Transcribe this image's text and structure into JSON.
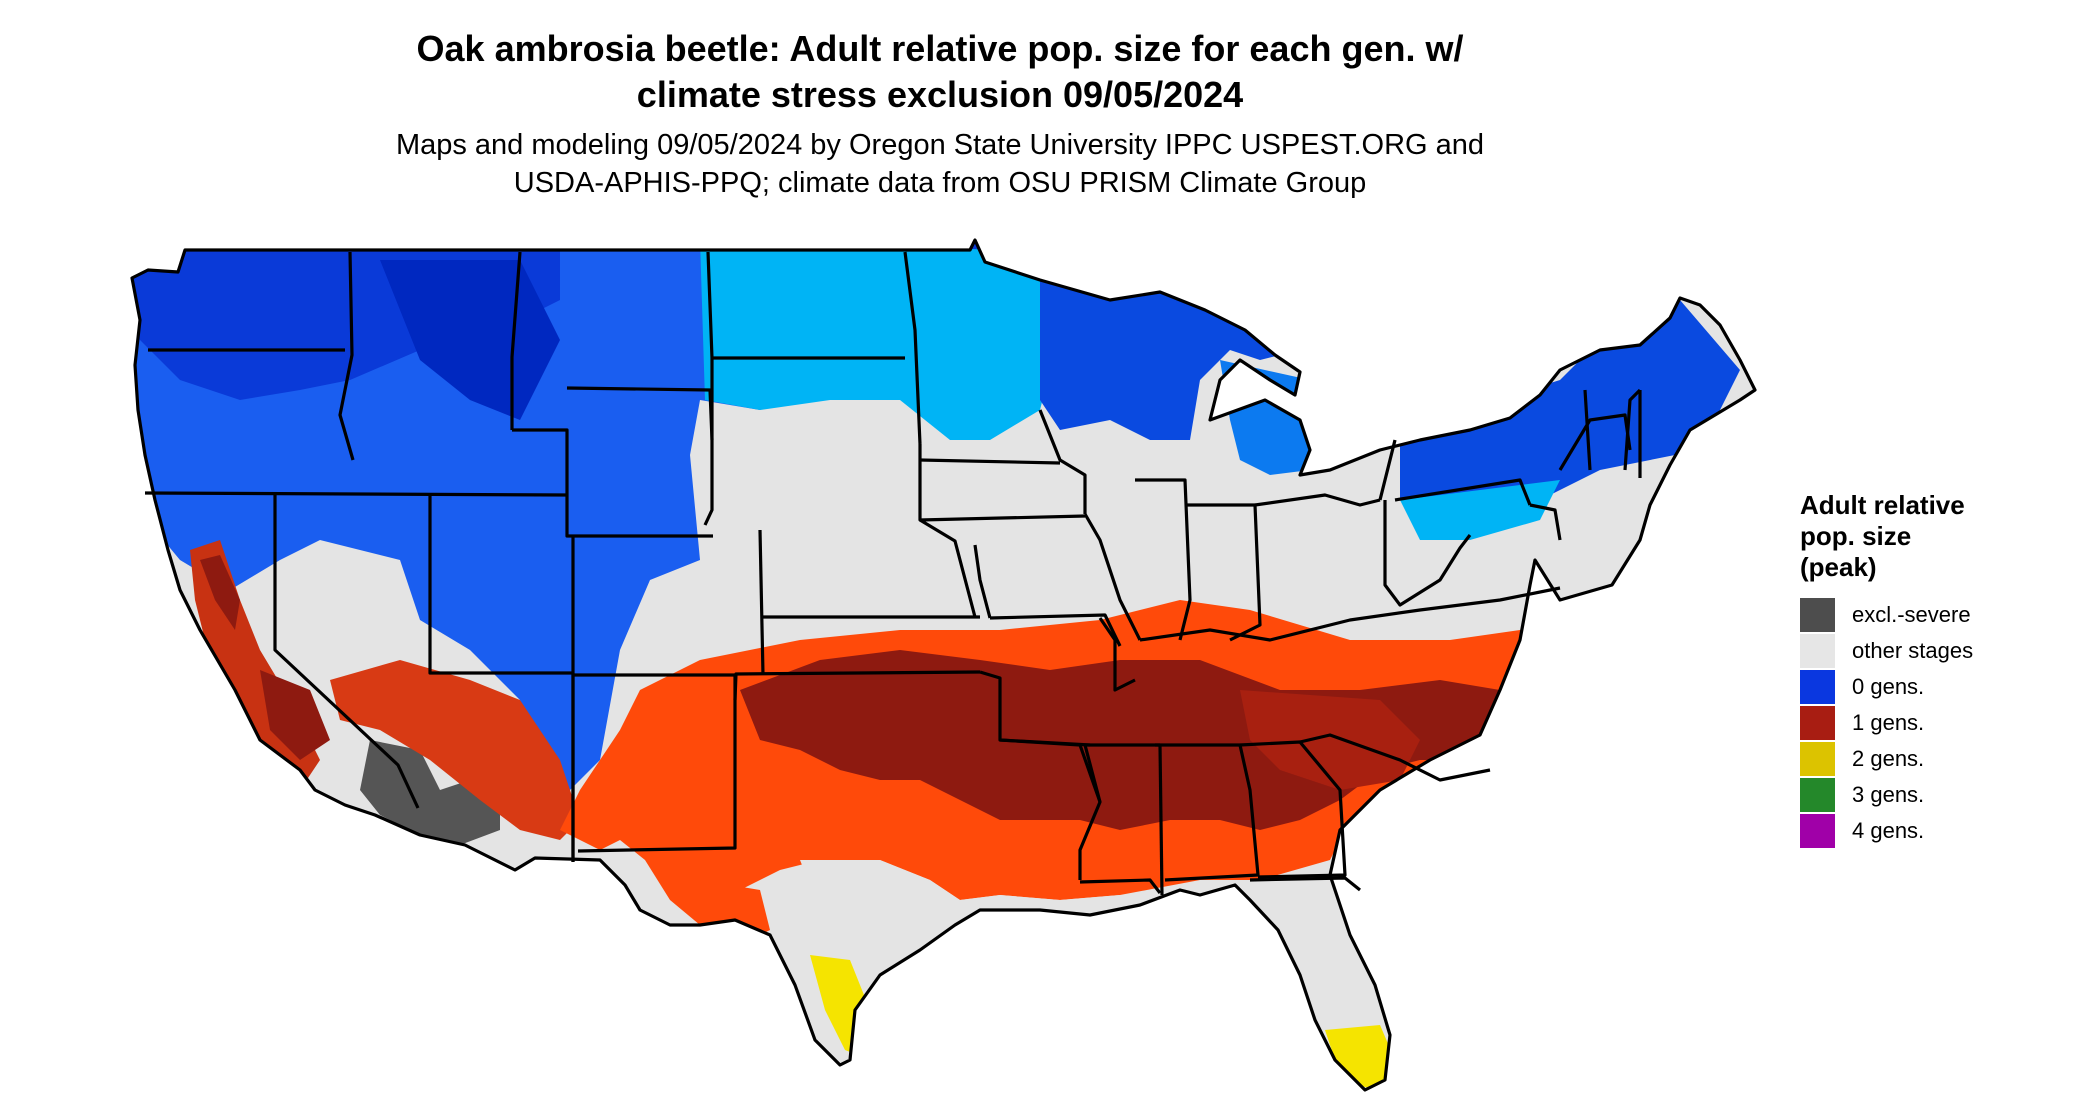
{
  "title_line1": "Oak ambrosia beetle: Adult relative pop. size for each gen. w/",
  "title_line2": "climate stress exclusion 09/05/2024",
  "subtitle_line1": "Maps and modeling 09/05/2024 by Oregon State University IPPC USPEST.ORG and",
  "subtitle_line2": "USDA-APHIS-PPQ; climate data from OSU PRISM Climate Group",
  "legend": {
    "title_line1": "Adult relative",
    "title_line2": "pop. size",
    "title_line3": "(peak)",
    "items": [
      {
        "label": "excl.-severe",
        "color": "#4d4d4d"
      },
      {
        "label": "other stages",
        "color": "#e6e6e6"
      },
      {
        "label": "0 gens.",
        "color": "#0a37e0"
      },
      {
        "label": "1 gens.",
        "color": "#a81d12"
      },
      {
        "label": "2 gens.",
        "color": "#dcc300"
      },
      {
        "label": "3 gens.",
        "color": "#24882a"
      },
      {
        "label": "4 gens.",
        "color": "#a000a8"
      }
    ]
  },
  "map_colors": {
    "background_land": "#e4e4e4",
    "cold_dark": "#0028c8",
    "cold_mid": "#1a6ef0",
    "cold_light": "#00b4f5",
    "warm_dark": "#8e1a10",
    "warm_mid": "#c83212",
    "warm_light": "#ff4a0a",
    "yellow": "#f5e400",
    "grey_excluded": "#555555",
    "border": "#000000"
  }
}
